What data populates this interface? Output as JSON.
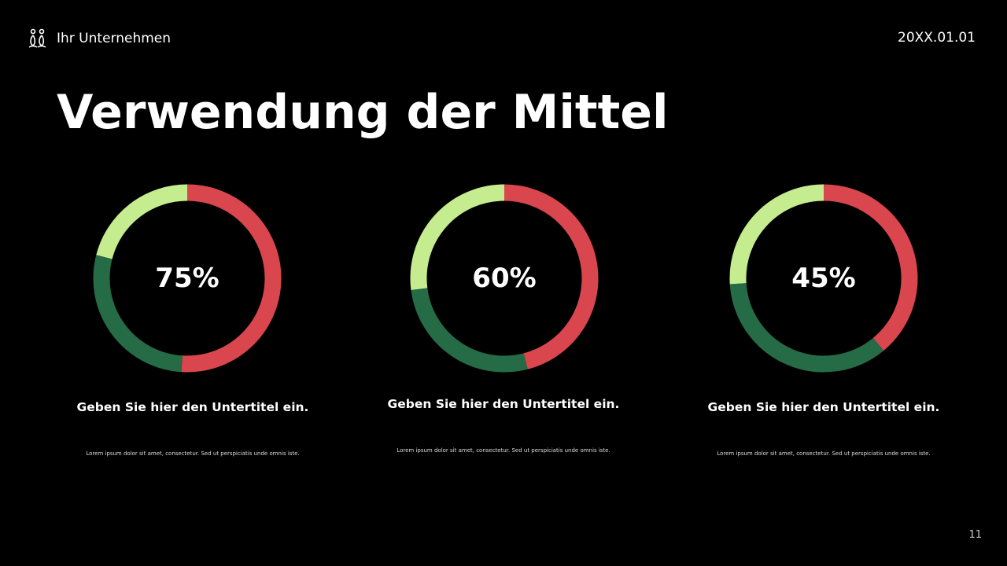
{
  "header": {
    "company": "Ihr Unternehmen",
    "date": "20XX.01.01",
    "logo_icon": "people-icon"
  },
  "title": "Verwendung der Mittel",
  "colors": {
    "red": "#d9464d",
    "dark_green": "#256b45",
    "light_green": "#c5ec8f",
    "background": "#000000"
  },
  "chart_data": [
    {
      "type": "pie",
      "donut": true,
      "label": "75%",
      "values": [
        51,
        28,
        21
      ],
      "colors": [
        "#d9464d",
        "#256b45",
        "#c5ec8f"
      ]
    },
    {
      "type": "pie",
      "donut": true,
      "label": "60%",
      "values": [
        46,
        27,
        27
      ],
      "colors": [
        "#d9464d",
        "#256b45",
        "#c5ec8f"
      ]
    },
    {
      "type": "pie",
      "donut": true,
      "label": "45%",
      "values": [
        39,
        35,
        26
      ],
      "colors": [
        "#d9464d",
        "#256b45",
        "#c5ec8f"
      ]
    }
  ],
  "items": [
    {
      "subtitle": "Geben Sie hier den Untertitel ein.",
      "text": "Lorem ipsum dolor sit amet, consectetur. Sed ut perspiciatis unde omnis iste."
    },
    {
      "subtitle": "Geben Sie hier den Untertitel ein.",
      "text": "Lorem ipsum dolor sit amet, consectetur. Sed ut perspiciatis unde omnis iste."
    },
    {
      "subtitle": "Geben Sie hier den Untertitel ein.",
      "text": "Lorem ipsum dolor sit amet, consectetur. Sed ut perspiciatis unde omnis iste."
    }
  ],
  "page_number": "11"
}
